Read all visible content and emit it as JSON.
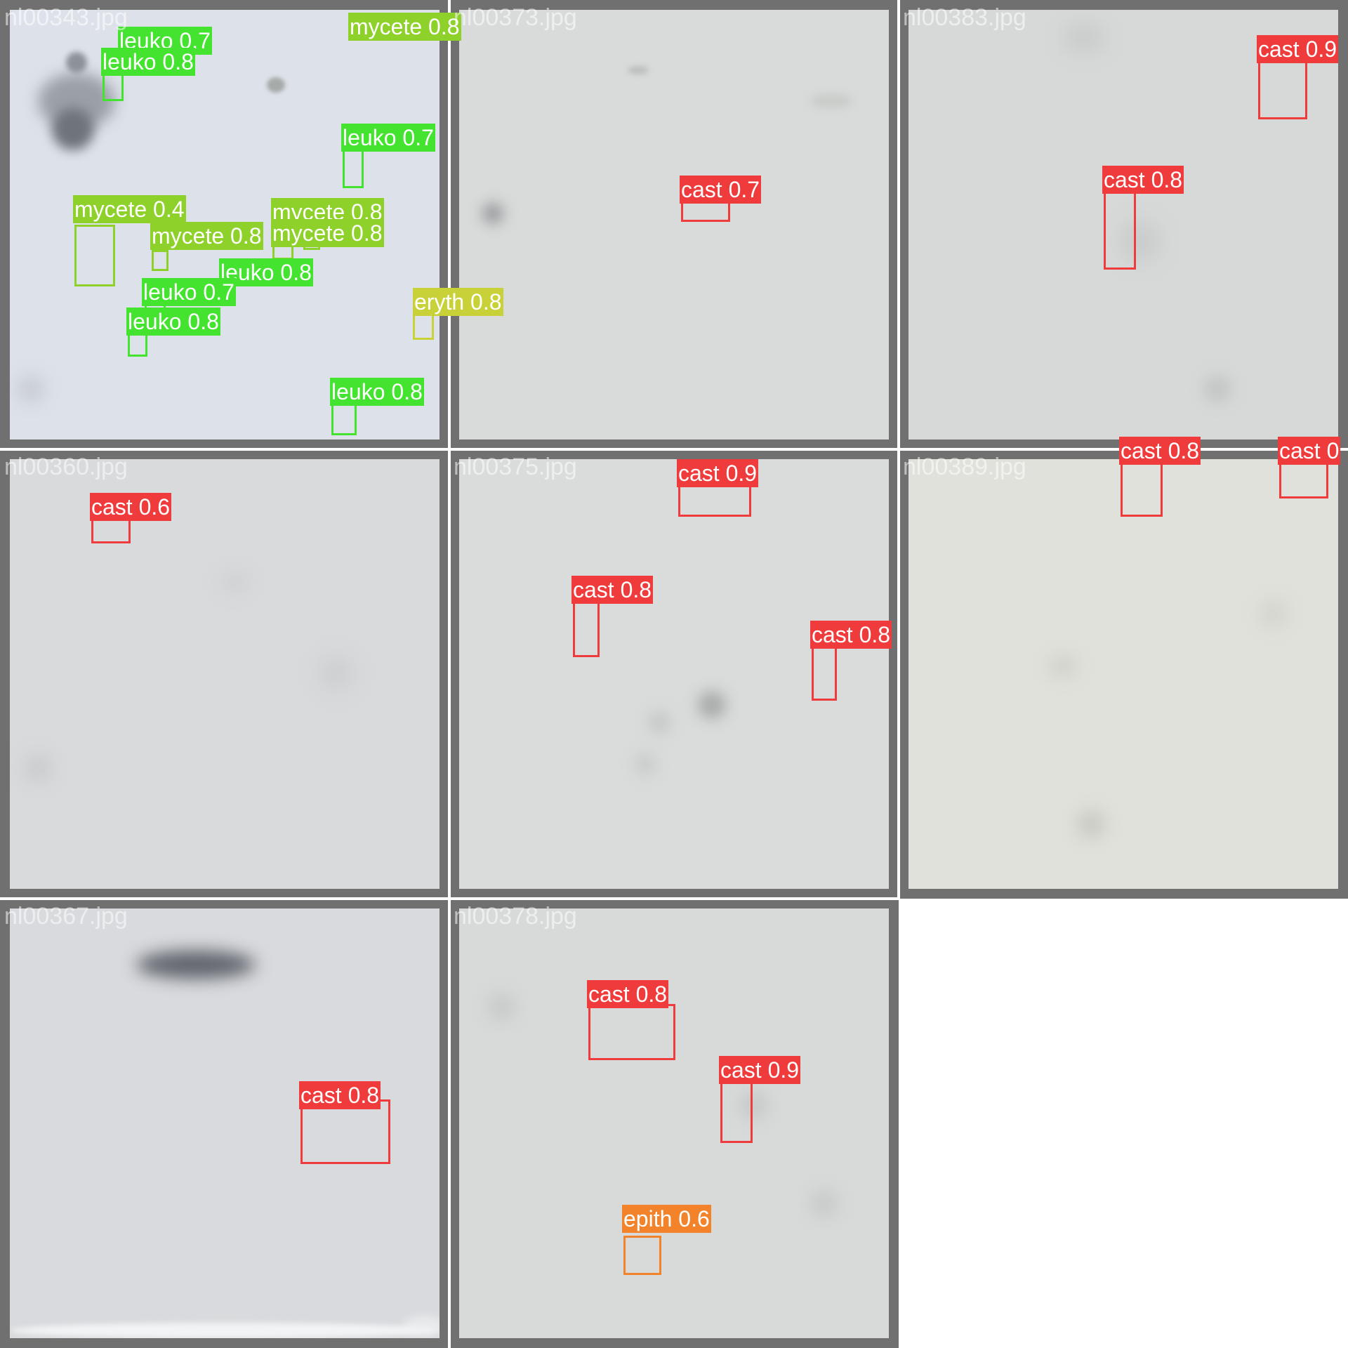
{
  "colors": {
    "cast": "#ef3b3b",
    "leuko": "#43e32f",
    "mycete": "#8ed12a",
    "eryth": "#c9d138",
    "epith": "#f2832a",
    "frame": "#707070"
  },
  "tiles": [
    {
      "filename": "nl00343.jpg",
      "bg": "#dde2ea",
      "detections": [
        {
          "label": "leuko 0.7",
          "cls": "leuko"
        },
        {
          "label": "leuko 0.8",
          "cls": "leuko"
        },
        {
          "label": "mycete 0.8",
          "cls": "mycete"
        },
        {
          "label": "leuko 0.7",
          "cls": "leuko"
        },
        {
          "label": "mycete 0.4",
          "cls": "mycete"
        },
        {
          "label": "mycete 0.8",
          "cls": "mycete"
        },
        {
          "label": "mycete 0.8",
          "cls": "mycete"
        },
        {
          "label": "mycete 0.8",
          "cls": "mycete"
        },
        {
          "label": "leuko 0.8",
          "cls": "leuko"
        },
        {
          "label": "leuko 0.7",
          "cls": "leuko"
        },
        {
          "label": "leuko 0.8",
          "cls": "leuko"
        },
        {
          "label": "eryth 0.8",
          "cls": "eryth"
        },
        {
          "label": "leuko 0.8",
          "cls": "leuko"
        }
      ]
    },
    {
      "filename": "nl00373.jpg",
      "bg": "#d9dbda",
      "detections": [
        {
          "label": "cast 0.7",
          "cls": "cast"
        }
      ]
    },
    {
      "filename": "nl00383.jpg",
      "bg": "#d7d9d9",
      "detections": [
        {
          "label": "cast 0.9",
          "cls": "cast"
        },
        {
          "label": "cast 0.8",
          "cls": "cast"
        }
      ]
    },
    {
      "filename": "nl00360.jpg",
      "bg": "#d8dadb",
      "detections": [
        {
          "label": "cast 0.6",
          "cls": "cast"
        }
      ]
    },
    {
      "filename": "nl00375.jpg",
      "bg": "#dadbdb",
      "detections": [
        {
          "label": "cast 0.9",
          "cls": "cast"
        },
        {
          "label": "cast 0.8",
          "cls": "cast"
        },
        {
          "label": "cast 0.8",
          "cls": "cast"
        }
      ]
    },
    {
      "filename": "nl00389.jpg",
      "bg": "#e0e1da",
      "detections": [
        {
          "label": "cast 0.8",
          "cls": "cast"
        },
        {
          "label": "cast 0",
          "cls": "cast"
        }
      ]
    },
    {
      "filename": "nl00367.jpg",
      "bg": "#d8dadd",
      "detections": [
        {
          "label": "cast 0.8",
          "cls": "cast"
        }
      ]
    },
    {
      "filename": "nl00378.jpg",
      "bg": "#d8dada",
      "detections": [
        {
          "label": "cast 0.8",
          "cls": "cast"
        },
        {
          "label": "cast 0.9",
          "cls": "cast"
        },
        {
          "label": "epith 0.6",
          "cls": "epith"
        }
      ]
    }
  ]
}
